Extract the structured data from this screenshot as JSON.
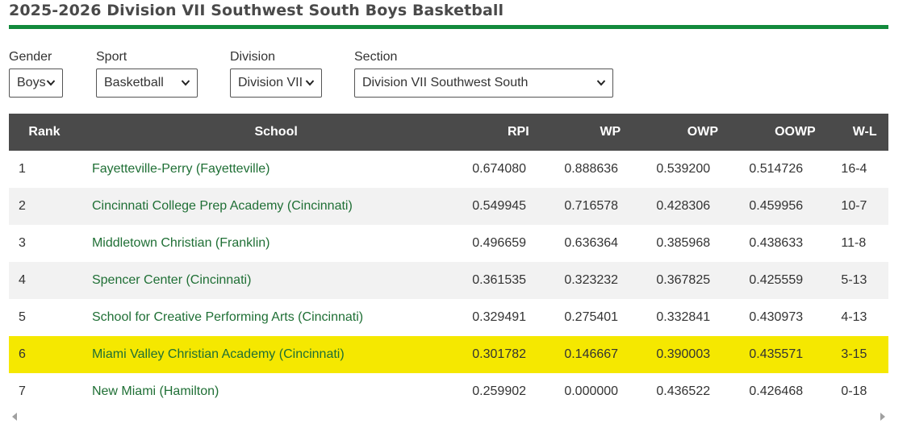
{
  "page": {
    "title": "2025-2026 Division VII Southwest South Boys Basketball",
    "accent_color": "#128a3c",
    "highlight_color": "#f5e800"
  },
  "filters": {
    "gender": {
      "label": "Gender",
      "value": "Boys"
    },
    "sport": {
      "label": "Sport",
      "value": "Basketball"
    },
    "division": {
      "label": "Division",
      "value": "Division VII"
    },
    "section": {
      "label": "Section",
      "value": "Division VII Southwest South"
    }
  },
  "table": {
    "headers": [
      "Rank",
      "School",
      "RPI",
      "WP",
      "OWP",
      "OOWP",
      "W-L"
    ],
    "rows": [
      {
        "rank": "1",
        "school": "Fayetteville-Perry (Fayetteville)",
        "rpi": "0.674080",
        "wp": "0.888636",
        "owp": "0.539200",
        "oowp": "0.514726",
        "wl": "16-4"
      },
      {
        "rank": "2",
        "school": "Cincinnati College Prep Academy (Cincinnati)",
        "rpi": "0.549945",
        "wp": "0.716578",
        "owp": "0.428306",
        "oowp": "0.459956",
        "wl": "10-7"
      },
      {
        "rank": "3",
        "school": "Middletown Christian (Franklin)",
        "rpi": "0.496659",
        "wp": "0.636364",
        "owp": "0.385968",
        "oowp": "0.438633",
        "wl": "11-8"
      },
      {
        "rank": "4",
        "school": "Spencer Center (Cincinnati)",
        "rpi": "0.361535",
        "wp": "0.323232",
        "owp": "0.367825",
        "oowp": "0.425559",
        "wl": "5-13"
      },
      {
        "rank": "5",
        "school": "School for Creative Performing Arts (Cincinnati)",
        "rpi": "0.329491",
        "wp": "0.275401",
        "owp": "0.332841",
        "oowp": "0.430973",
        "wl": "4-13"
      },
      {
        "rank": "6",
        "school": "Miami Valley Christian Academy (Cincinnati)",
        "rpi": "0.301782",
        "wp": "0.146667",
        "owp": "0.390003",
        "oowp": "0.435571",
        "wl": "3-15"
      },
      {
        "rank": "7",
        "school": "New Miami (Hamilton)",
        "rpi": "0.259902",
        "wp": "0.000000",
        "owp": "0.436522",
        "oowp": "0.426468",
        "wl": "0-18"
      }
    ]
  }
}
